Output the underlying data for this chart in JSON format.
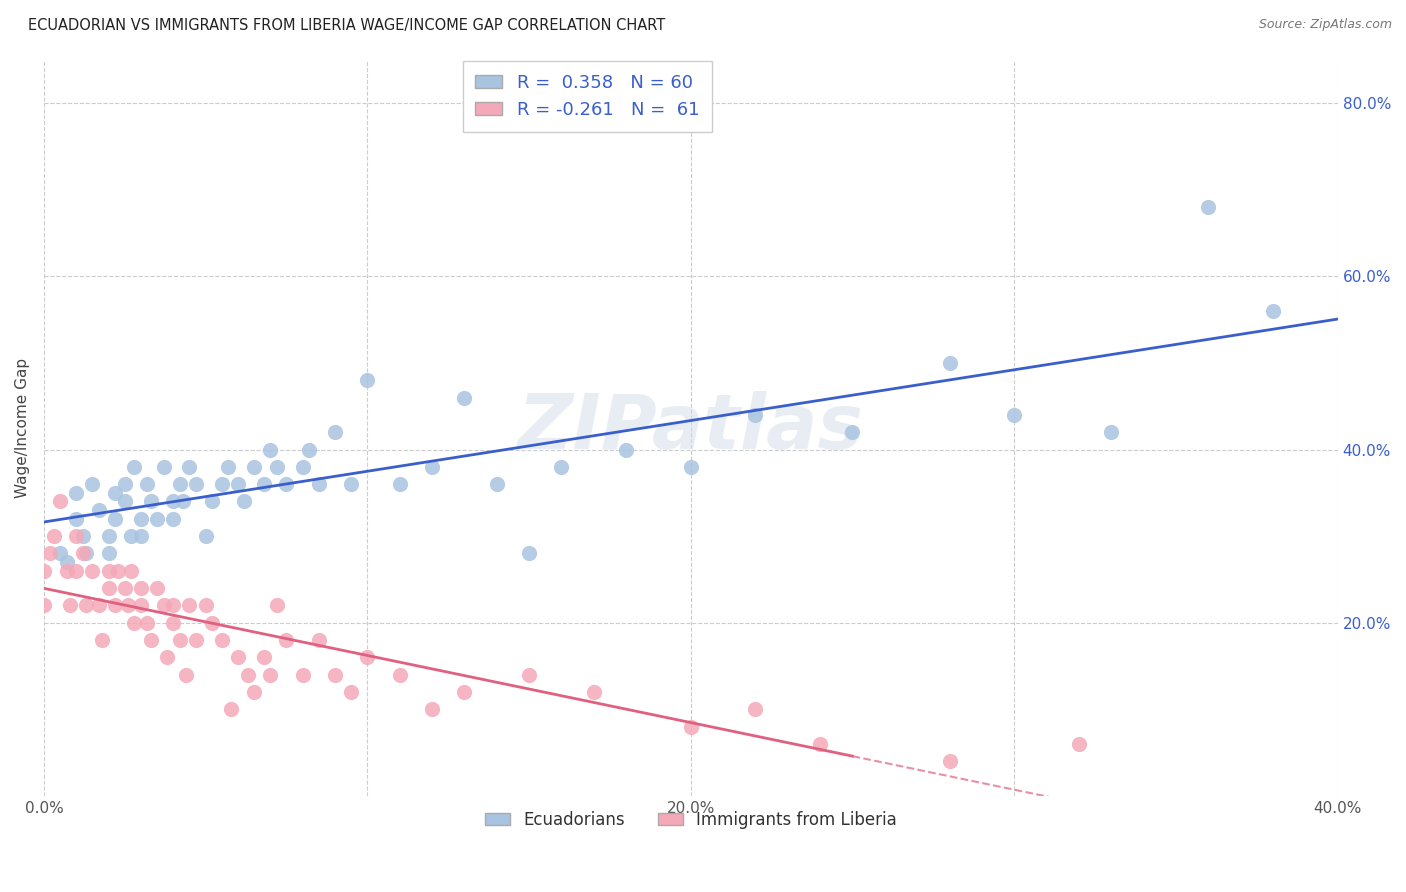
{
  "title": "ECUADORIAN VS IMMIGRANTS FROM LIBERIA WAGE/INCOME GAP CORRELATION CHART",
  "source": "Source: ZipAtlas.com",
  "ylabel": "Wage/Income Gap",
  "xlim": [
    0.0,
    0.4
  ],
  "ylim": [
    0.0,
    0.85
  ],
  "xtick_vals": [
    0.0,
    0.1,
    0.2,
    0.3,
    0.4
  ],
  "xtick_labels": [
    "0.0%",
    "",
    "20.0%",
    "",
    "40.0%"
  ],
  "ytick_vals_right": [
    0.2,
    0.4,
    0.6,
    0.8
  ],
  "ytick_labels_right": [
    "20.0%",
    "40.0%",
    "60.0%",
    "80.0%"
  ],
  "blue_color": "#a8c4e0",
  "pink_color": "#f4a8b8",
  "blue_line_color": "#3a5fcd",
  "pink_line_color": "#e06080",
  "R_blue": 0.358,
  "N_blue": 60,
  "R_pink": -0.261,
  "N_pink": 61,
  "legend_label_blue": "Ecuadorians",
  "legend_label_pink": "Immigrants from Liberia",
  "watermark": "ZIPatlas",
  "blue_scatter_x": [
    0.005,
    0.007,
    0.01,
    0.01,
    0.012,
    0.013,
    0.015,
    0.017,
    0.02,
    0.02,
    0.022,
    0.022,
    0.025,
    0.025,
    0.027,
    0.028,
    0.03,
    0.03,
    0.032,
    0.033,
    0.035,
    0.037,
    0.04,
    0.04,
    0.042,
    0.043,
    0.045,
    0.047,
    0.05,
    0.052,
    0.055,
    0.057,
    0.06,
    0.062,
    0.065,
    0.068,
    0.07,
    0.072,
    0.075,
    0.08,
    0.082,
    0.085,
    0.09,
    0.095,
    0.1,
    0.11,
    0.12,
    0.13,
    0.14,
    0.15,
    0.16,
    0.18,
    0.2,
    0.22,
    0.25,
    0.28,
    0.3,
    0.33,
    0.36,
    0.38
  ],
  "blue_scatter_y": [
    0.28,
    0.27,
    0.32,
    0.35,
    0.3,
    0.28,
    0.36,
    0.33,
    0.3,
    0.28,
    0.35,
    0.32,
    0.36,
    0.34,
    0.3,
    0.38,
    0.32,
    0.3,
    0.36,
    0.34,
    0.32,
    0.38,
    0.34,
    0.32,
    0.36,
    0.34,
    0.38,
    0.36,
    0.3,
    0.34,
    0.36,
    0.38,
    0.36,
    0.34,
    0.38,
    0.36,
    0.4,
    0.38,
    0.36,
    0.38,
    0.4,
    0.36,
    0.42,
    0.36,
    0.48,
    0.36,
    0.38,
    0.46,
    0.36,
    0.28,
    0.38,
    0.4,
    0.38,
    0.44,
    0.42,
    0.5,
    0.44,
    0.42,
    0.68,
    0.56
  ],
  "pink_scatter_x": [
    0.0,
    0.0,
    0.002,
    0.003,
    0.005,
    0.007,
    0.008,
    0.01,
    0.01,
    0.012,
    0.013,
    0.015,
    0.017,
    0.018,
    0.02,
    0.02,
    0.022,
    0.023,
    0.025,
    0.026,
    0.027,
    0.028,
    0.03,
    0.03,
    0.032,
    0.033,
    0.035,
    0.037,
    0.038,
    0.04,
    0.04,
    0.042,
    0.044,
    0.045,
    0.047,
    0.05,
    0.052,
    0.055,
    0.058,
    0.06,
    0.063,
    0.065,
    0.068,
    0.07,
    0.072,
    0.075,
    0.08,
    0.085,
    0.09,
    0.095,
    0.1,
    0.11,
    0.12,
    0.13,
    0.15,
    0.17,
    0.2,
    0.22,
    0.24,
    0.28,
    0.32
  ],
  "pink_scatter_y": [
    0.26,
    0.22,
    0.28,
    0.3,
    0.34,
    0.26,
    0.22,
    0.3,
    0.26,
    0.28,
    0.22,
    0.26,
    0.22,
    0.18,
    0.26,
    0.24,
    0.22,
    0.26,
    0.24,
    0.22,
    0.26,
    0.2,
    0.24,
    0.22,
    0.2,
    0.18,
    0.24,
    0.22,
    0.16,
    0.22,
    0.2,
    0.18,
    0.14,
    0.22,
    0.18,
    0.22,
    0.2,
    0.18,
    0.1,
    0.16,
    0.14,
    0.12,
    0.16,
    0.14,
    0.22,
    0.18,
    0.14,
    0.18,
    0.14,
    0.12,
    0.16,
    0.14,
    0.1,
    0.12,
    0.14,
    0.12,
    0.08,
    0.1,
    0.06,
    0.04,
    0.06
  ],
  "blue_line_x_start": 0.0,
  "blue_line_x_end": 0.4,
  "pink_line_solid_x_end": 0.25,
  "pink_line_dashed_x_end": 0.4,
  "grid_color": "#cccccc",
  "grid_linestyle": "--",
  "grid_linewidth": 0.8
}
